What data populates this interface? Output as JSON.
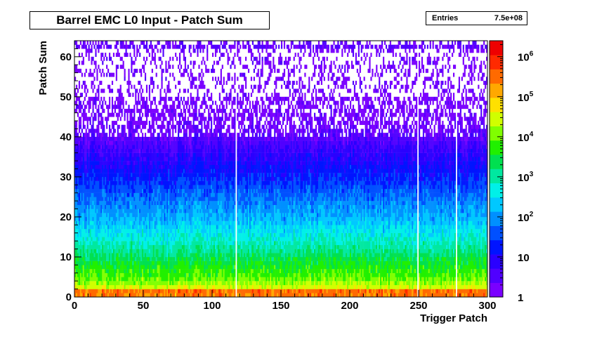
{
  "title": "Barrel EMC L0 Input - Patch Sum",
  "stats": {
    "label": "Entries",
    "value": "7.5e+08"
  },
  "chart_data": {
    "type": "heatmap",
    "title": "Barrel EMC L0 Input - Patch Sum",
    "xlabel": "Trigger Patch",
    "ylabel": "Patch Sum",
    "xlim": [
      0,
      300
    ],
    "ylim": [
      0,
      64
    ],
    "x_ticks": [
      0,
      50,
      100,
      150,
      200,
      250,
      300
    ],
    "y_ticks": [
      0,
      10,
      20,
      30,
      40,
      50,
      60
    ],
    "z_scale": "log",
    "z_range": [
      1,
      2500000
    ],
    "z_ticks": [
      {
        "base": "1",
        "exp": ""
      },
      {
        "base": "10",
        "exp": ""
      },
      {
        "base": "10",
        "exp": "2"
      },
      {
        "base": "10",
        "exp": "3"
      },
      {
        "base": "10",
        "exp": "4"
      },
      {
        "base": "10",
        "exp": "5"
      },
      {
        "base": "10",
        "exp": "6"
      }
    ],
    "z_tick_values": [
      1,
      10,
      100,
      1000,
      10000,
      100000,
      1000000
    ],
    "approx_profile": {
      "patch_sum": [
        0,
        1,
        2,
        3,
        5,
        8,
        12,
        16,
        20,
        25,
        30,
        35,
        40,
        45,
        50,
        55,
        60,
        62
      ],
      "counts_per_bin": [
        40000,
        2000000,
        50000,
        20000,
        8000,
        4000,
        1200,
        400,
        150,
        60,
        20,
        8,
        3,
        1.5,
        1,
        0.7,
        0.5,
        2
      ]
    },
    "empty_patches": [
      117,
      249,
      277
    ]
  },
  "colors": {
    "palette": [
      "#7a00ff",
      "#5000ff",
      "#2a00ff",
      "#0014ff",
      "#0050ff",
      "#0090ff",
      "#00c8ff",
      "#00f0e8",
      "#00e8a0",
      "#00e050",
      "#20f000",
      "#80ff00",
      "#d0ff00",
      "#ffe000",
      "#ffa800",
      "#ff6a00",
      "#ff2a00",
      "#ee0000"
    ]
  }
}
